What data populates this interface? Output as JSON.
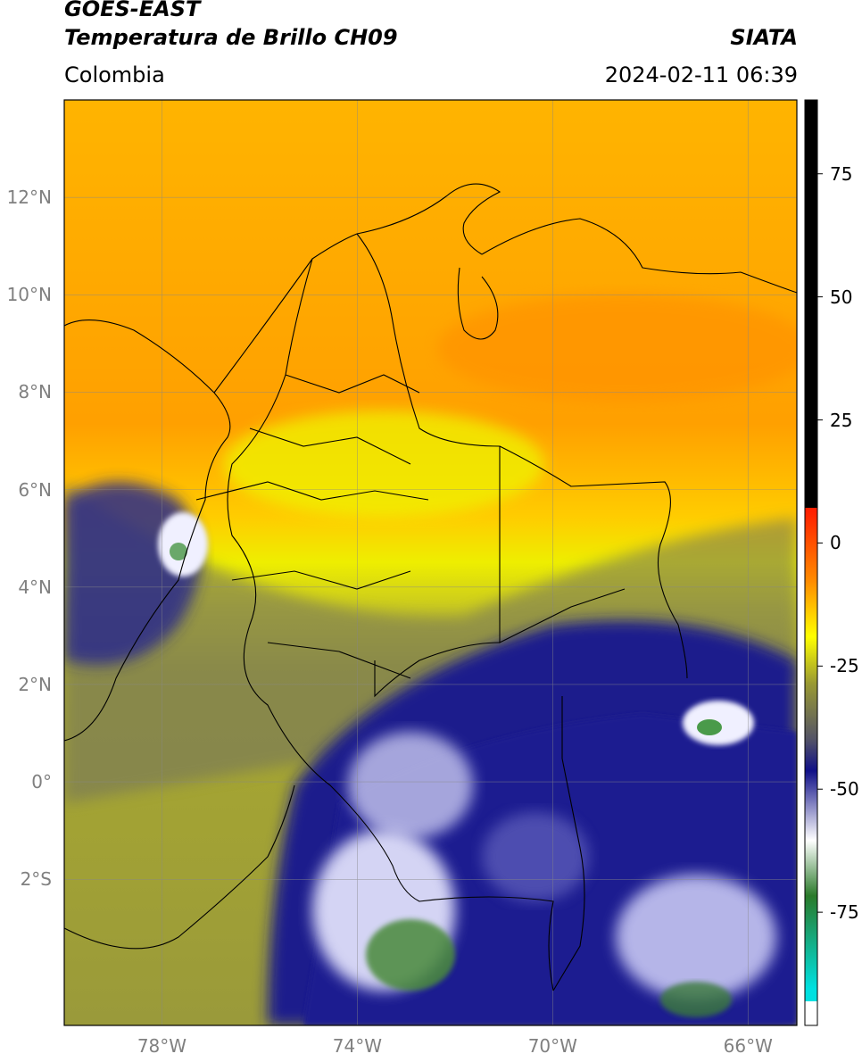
{
  "header": {
    "satellite": "GOES-EAST",
    "product": "Temperatura de Brillo CH09",
    "agency": "SIATA",
    "region": "Colombia",
    "timestamp": "2024-02-11 06:39"
  },
  "map": {
    "lat_ticks": [
      "12°N",
      "10°N",
      "8°N",
      "6°N",
      "4°N",
      "2°N",
      "0°",
      "2°S"
    ],
    "lon_ticks": [
      "78°W",
      "74°W",
      "70°W",
      "66°W"
    ],
    "lat_range": [
      -5,
      14
    ],
    "lon_range": [
      -80,
      -65
    ]
  },
  "colorbar": {
    "ticks": [
      "75",
      "50",
      "25",
      "0",
      "-25",
      "-50",
      "-75"
    ],
    "range": [
      -98,
      90
    ],
    "colors": {
      "warm_black": "#000000",
      "red": "#ff2000",
      "orange": "#ff9a00",
      "yellow": "#ffff00",
      "olive": "#9a9a32",
      "gray": "#555566",
      "navy": "#101088",
      "white": "#ffffff",
      "green": "#2a7a2a",
      "cyan": "#00e0e0"
    }
  }
}
